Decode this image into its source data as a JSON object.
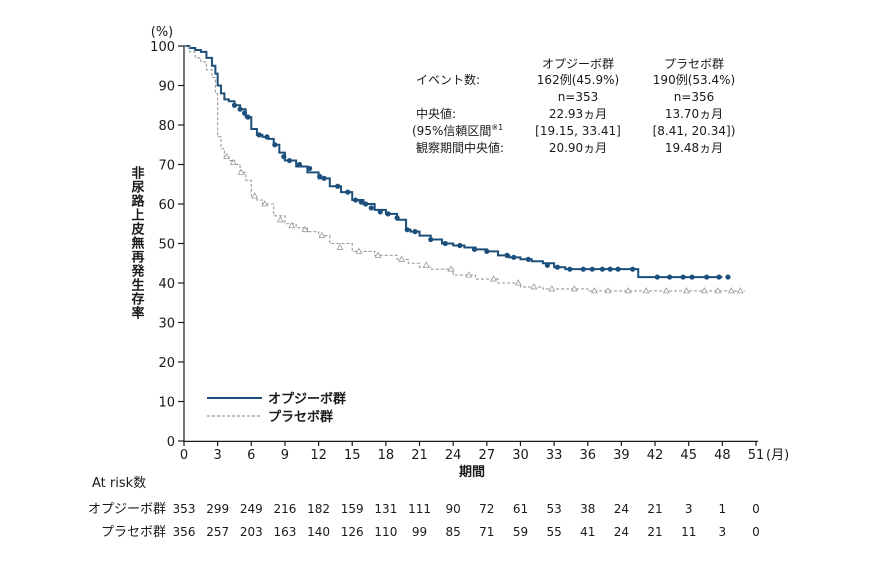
{
  "chart_data": {
    "type": "line",
    "y_unit_label": "(%)",
    "ylabel": "非尿路上皮無再発生存率",
    "xlabel": "期間",
    "x_unit_label": "(月)",
    "xlim": [
      0,
      51
    ],
    "ylim": [
      0,
      100
    ],
    "x_ticks": [
      "0",
      "3",
      "6",
      "9",
      "12",
      "15",
      "18",
      "21",
      "24",
      "27",
      "30",
      "33",
      "36",
      "39",
      "42",
      "45",
      "48",
      "51"
    ],
    "y_ticks": [
      "0",
      "10",
      "20",
      "30",
      "40",
      "50",
      "60",
      "70",
      "80",
      "90",
      "100"
    ],
    "colors": {
      "nivolumab": "#1c4f7c",
      "placebo": "#999999"
    },
    "legend_position": "bottom-left",
    "series": [
      {
        "name": "オプジーボ群",
        "style": "solid",
        "censor_marker": "filled-circle",
        "x": [
          0,
          0.5,
          1,
          1.5,
          2,
          2.5,
          2.8,
          3.0,
          3.3,
          3.6,
          4.0,
          4.5,
          5.0,
          5.5,
          6.0,
          6.5,
          7.0,
          7.5,
          8.0,
          8.5,
          9.0,
          10,
          11,
          12,
          13,
          14,
          15,
          16,
          17,
          18,
          19,
          19.8,
          20.2,
          21,
          22,
          23,
          24,
          25,
          26,
          27,
          28,
          29,
          30,
          31,
          32,
          33,
          34,
          36,
          38,
          40,
          40.5,
          42,
          44,
          46,
          48
        ],
        "y": [
          100,
          99.5,
          99,
          98.5,
          97,
          95,
          93,
          90,
          88,
          86.5,
          86,
          85,
          84,
          82,
          79,
          77.5,
          77,
          76.5,
          75,
          73,
          71,
          69.5,
          68,
          66.5,
          64.5,
          63,
          61,
          60,
          58.5,
          57.5,
          56,
          53.5,
          53,
          52,
          51,
          50,
          49.5,
          49,
          48.5,
          48,
          47,
          46.5,
          46,
          45.5,
          45,
          44,
          43.5,
          43.5,
          43.5,
          43.5,
          41.5,
          41.5,
          41.5,
          41.5,
          41.5
        ],
        "censor_x": [
          4.5,
          5.0,
          5.4,
          5.7,
          6.7,
          7.4,
          8.1,
          8.9,
          9.4,
          10.3,
          11.2,
          12.1,
          12.5,
          13.7,
          14.6,
          15.3,
          15.8,
          16.2,
          16.7,
          17.5,
          18.2,
          19.0,
          19.9,
          20.6,
          22.0,
          23.3,
          24.6,
          25.9,
          27.0,
          28.8,
          29.4,
          30.7,
          32.4,
          33.3,
          34.4,
          35.6,
          36.4,
          37.3,
          38.0,
          38.7,
          40.0,
          42.2,
          43.3,
          44.5,
          45.3,
          46.6,
          47.7,
          48.5
        ],
        "censor_y": [
          85,
          84,
          83,
          82,
          77.5,
          77,
          75,
          72,
          71,
          70,
          69,
          67,
          66.5,
          64.5,
          63,
          61,
          60.5,
          60,
          59,
          58,
          57.5,
          56.5,
          53.5,
          53,
          51,
          50,
          49.5,
          48.5,
          48,
          47,
          46.5,
          46,
          44.5,
          44,
          43.5,
          43.5,
          43.5,
          43.5,
          43.5,
          43.5,
          43.5,
          41.5,
          41.5,
          41.5,
          41.5,
          41.5,
          41.5,
          41.5
        ]
      },
      {
        "name": "プラセボ群",
        "style": "dashed",
        "censor_marker": "open-triangle",
        "x": [
          0,
          0.5,
          1,
          1.5,
          2,
          2.5,
          2.8,
          3.0,
          3.3,
          3.6,
          4.0,
          4.5,
          5.0,
          5.5,
          6.0,
          6.5,
          7.0,
          8.0,
          9.0,
          10,
          11,
          12,
          13,
          15,
          17,
          19,
          20,
          21,
          22,
          24,
          26,
          28,
          30,
          32,
          34,
          36,
          40,
          44,
          48,
          50
        ],
        "y": [
          100,
          98.5,
          97,
          96,
          94,
          92,
          88,
          77,
          74,
          72,
          71,
          70,
          68,
          66,
          62,
          61,
          60,
          57,
          55,
          54,
          53,
          52,
          50,
          48,
          47,
          46,
          45,
          44,
          43.5,
          42,
          41,
          40,
          39,
          38.5,
          38.5,
          38,
          38,
          38,
          38,
          38
        ],
        "censor_x": [
          3.8,
          4.4,
          5.1,
          6.3,
          7.2,
          8.6,
          9.6,
          10.8,
          12.3,
          13.9,
          15.6,
          17.3,
          19.4,
          21.6,
          23.8,
          25.4,
          27.6,
          29.8,
          31.2,
          32.8,
          34.8,
          36.6,
          37.8,
          39.6,
          41.2,
          43.0,
          44.8,
          46.4,
          47.6,
          48.8,
          49.6
        ],
        "censor_y": [
          72,
          70.5,
          68,
          62,
          60,
          56,
          54.5,
          53.5,
          52,
          49,
          48,
          47,
          46,
          44.5,
          43.5,
          42,
          41,
          40,
          39,
          38.5,
          38.5,
          38,
          38,
          38,
          38,
          38,
          38,
          38,
          38,
          38,
          38
        ]
      }
    ],
    "stats": {
      "col_headers": [
        "オプジーボ群",
        "プラセボ群"
      ],
      "event_label": "イベント数:",
      "events": [
        "162例(45.9%)",
        "190例(53.4%)"
      ],
      "n": [
        "n=353",
        "n=356"
      ],
      "median_label": "中央値:",
      "median": [
        "22.93ヵ月",
        "13.70ヵ月"
      ],
      "ci_label": "(95%信頼区間",
      "ci_footnote": "※1",
      "ci_close": ")",
      "ci": [
        "[19.15, 33.41]",
        "[8.41, 20.34]"
      ],
      "followup_label": "観察期間中央値:",
      "followup": [
        "20.90ヵ月",
        "19.48ヵ月"
      ]
    },
    "at_risk": {
      "title": "At risk数",
      "rows": [
        {
          "label": "オプジーボ群",
          "values": [
            "353",
            "299",
            "249",
            "216",
            "182",
            "159",
            "131",
            "111",
            "90",
            "72",
            "61",
            "53",
            "38",
            "24",
            "21",
            "3",
            "1",
            "0"
          ]
        },
        {
          "label": "プラセボ群",
          "values": [
            "356",
            "257",
            "203",
            "163",
            "140",
            "126",
            "110",
            "99",
            "85",
            "71",
            "59",
            "55",
            "41",
            "24",
            "21",
            "11",
            "3",
            "0"
          ]
        }
      ]
    }
  }
}
